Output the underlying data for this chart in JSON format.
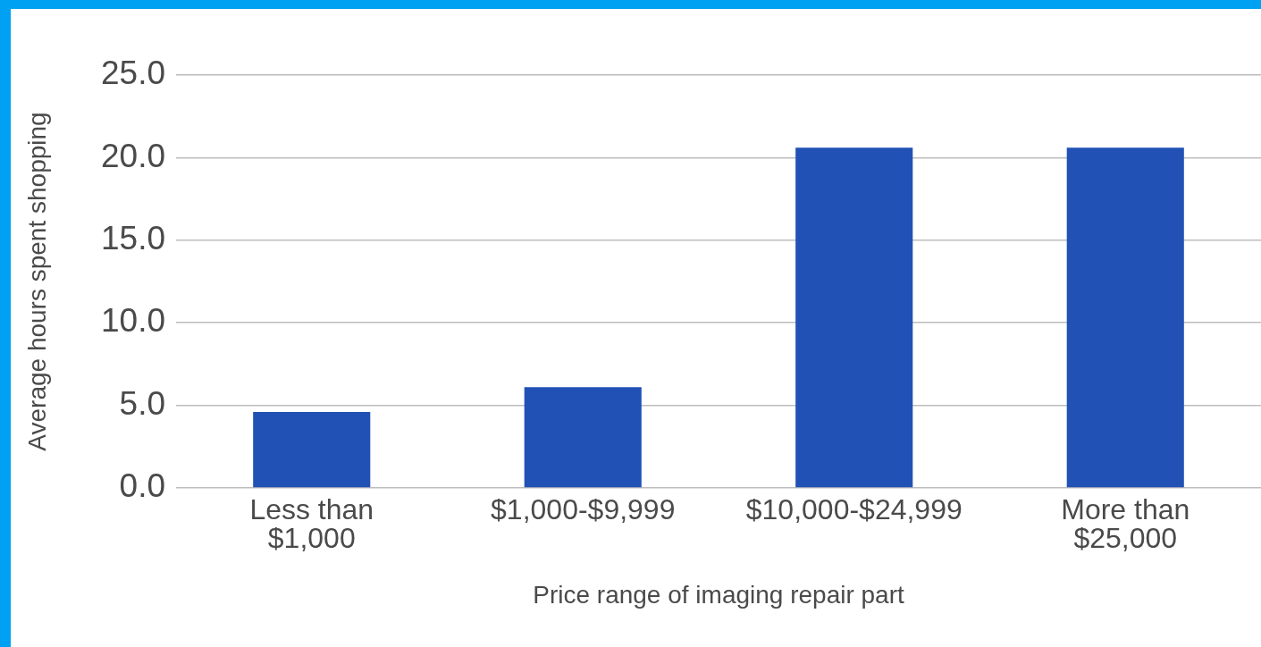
{
  "chart_data": {
    "type": "bar",
    "xlabel": "Price range of imaging repair part",
    "ylabel": "Average hours spent shopping",
    "categories": [
      "Less than $1,000",
      "$1,000-$9,999",
      "$10,000-$24,999",
      "More than $25,000"
    ],
    "values": [
      4.6,
      6.1,
      20.6,
      20.6
    ],
    "color": "#2151b4",
    "ylim": [
      0,
      25
    ],
    "yticks": [
      {
        "value": 0,
        "label": "0.0"
      },
      {
        "value": 5,
        "label": "5.0"
      },
      {
        "value": 10,
        "label": "10.0"
      },
      {
        "value": 15,
        "label": "15.0"
      },
      {
        "value": 20,
        "label": "20.0"
      },
      {
        "value": 25,
        "label": "25.0"
      }
    ],
    "grid": "y"
  }
}
